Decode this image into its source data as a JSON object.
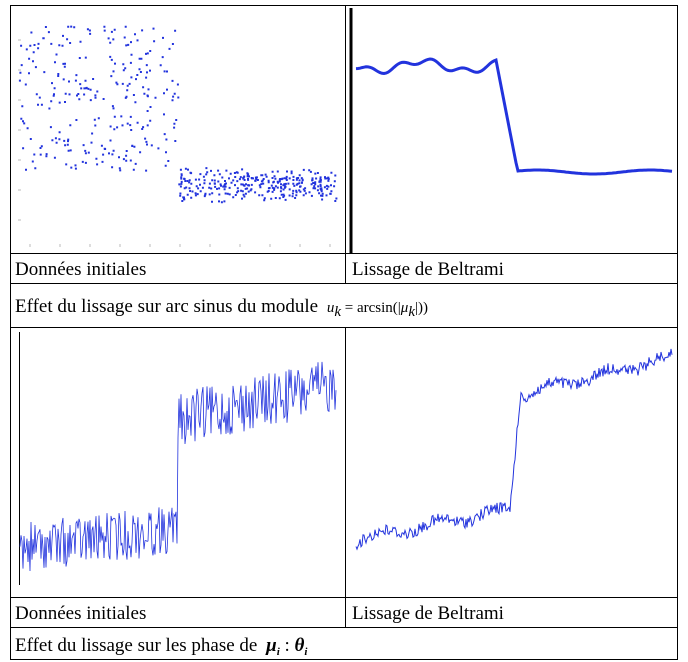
{
  "table": {
    "rows": [
      {
        "cells": [
          "Données initiales",
          "Lissage de Beltrami"
        ]
      },
      {
        "caption": "Effet du lissage sur arc sinus du module ",
        "formula": [
          "u",
          "k",
          " = arcsin(|",
          "μ",
          "k",
          "|))"
        ]
      },
      {
        "cells": [
          "Données initiales",
          "Lissage de Beltrami"
        ]
      },
      {
        "caption": "Effet du lissage sur les phase de ",
        "formula": [
          "μ",
          "i",
          " : ",
          "θ",
          "i"
        ]
      }
    ]
  }
}
